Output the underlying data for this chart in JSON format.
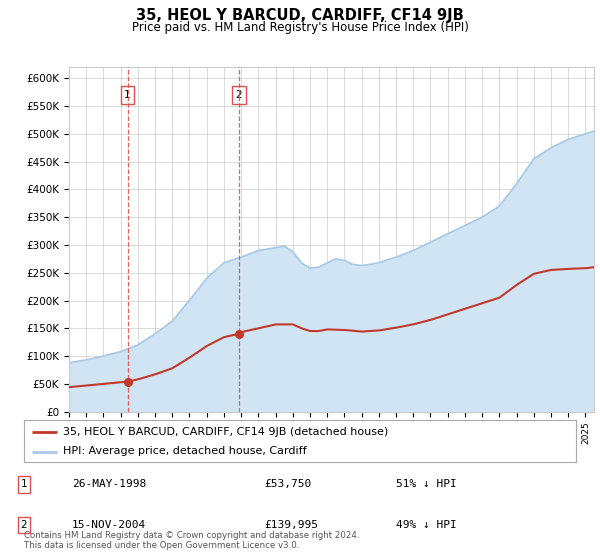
{
  "title": "35, HEOL Y BARCUD, CARDIFF, CF14 9JB",
  "subtitle": "Price paid vs. HM Land Registry's House Price Index (HPI)",
  "legend_label_red": "35, HEOL Y BARCUD, CARDIFF, CF14 9JB (detached house)",
  "legend_label_blue": "HPI: Average price, detached house, Cardiff",
  "footer": "Contains HM Land Registry data © Crown copyright and database right 2024.\nThis data is licensed under the Open Government Licence v3.0.",
  "transaction_table": [
    {
      "num": "1",
      "date": "26-MAY-1998",
      "price": "£53,750",
      "note": "51% ↓ HPI"
    },
    {
      "num": "2",
      "date": "15-NOV-2004",
      "price": "£139,995",
      "note": "49% ↓ HPI"
    }
  ],
  "t1_x": 1998.4,
  "t1_y": 53750,
  "t2_x": 2004.87,
  "t2_y": 139995,
  "ylim": [
    0,
    620000
  ],
  "xlim": [
    1995,
    2025.5
  ],
  "yticks": [
    0,
    50000,
    100000,
    150000,
    200000,
    250000,
    300000,
    350000,
    400000,
    450000,
    500000,
    550000,
    600000
  ],
  "ytick_labels": [
    "£0",
    "£50K",
    "£100K",
    "£150K",
    "£200K",
    "£250K",
    "£300K",
    "£350K",
    "£400K",
    "£450K",
    "£500K",
    "£550K",
    "£600K"
  ],
  "hpi_line_color": "#a8c8e8",
  "hpi_fill_color": "#d0e4f4",
  "price_color": "#c0392b",
  "vline_color": "#e05050",
  "grid_color": "#cccccc",
  "plot_bg_color": "#ffffff"
}
